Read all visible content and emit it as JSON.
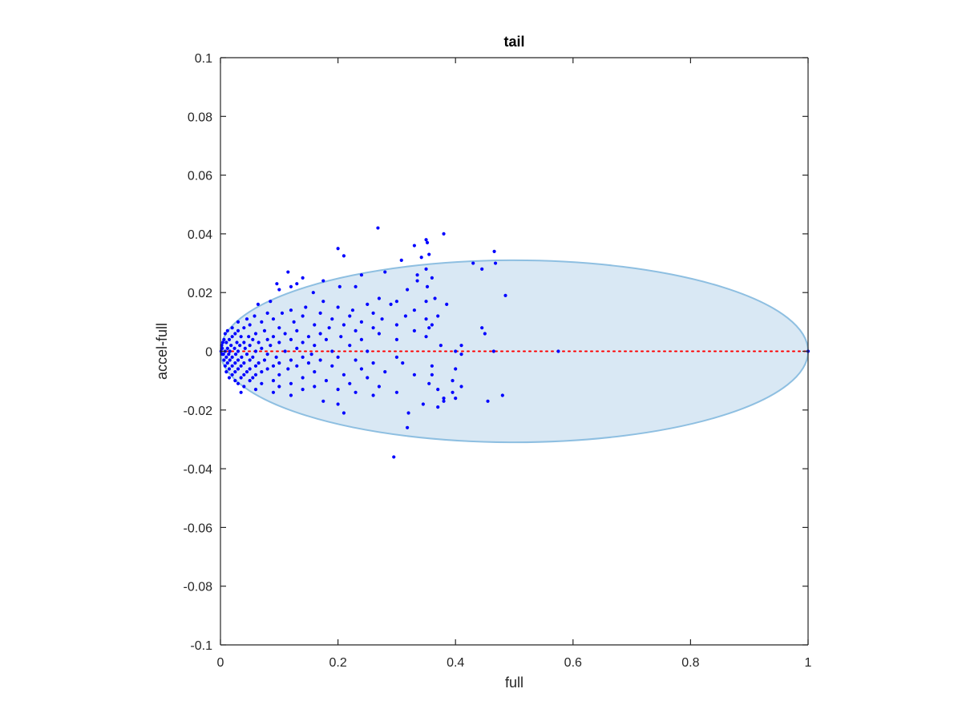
{
  "chart_data": {
    "type": "scatter",
    "title": "tail",
    "xlabel": "full",
    "ylabel": "accel-full",
    "xlim": [
      0,
      1
    ],
    "ylim": [
      -0.1,
      0.1
    ],
    "xticks": [
      0,
      0.2,
      0.4,
      0.6,
      0.8,
      1
    ],
    "xtick_labels": [
      "0",
      "0.2",
      "0.4",
      "0.6",
      "0.8",
      "1"
    ],
    "yticks": [
      0.1,
      0.08,
      0.06,
      0.04,
      0.02,
      0,
      -0.02,
      -0.04,
      -0.06,
      -0.08,
      -0.1
    ],
    "ytick_labels": [
      "0.1",
      "0.08",
      "0.06",
      "0.04",
      "0.02",
      "0",
      "-0.02",
      "-0.04",
      "-0.06",
      "-0.08",
      "-0.1"
    ],
    "grid": false,
    "colors": {
      "points": "#0000ff",
      "reference_line": "#ff0000",
      "ellipse_fill": "#d9e8f4",
      "ellipse_edge": "#8ebfe1",
      "axes": "#262626"
    },
    "reference_line": {
      "y": 0,
      "x": [
        0,
        1
      ],
      "style": "dotted"
    },
    "ellipse": {
      "center": [
        0.5,
        0
      ],
      "semi_axis_x": 0.5,
      "semi_axis_y": 0.031
    },
    "points": [
      [
        0.268,
        0.042
      ],
      [
        0.38,
        0.04
      ],
      [
        0.35,
        0.038
      ],
      [
        0.352,
        0.037
      ],
      [
        0.33,
        0.036
      ],
      [
        0.2,
        0.035
      ],
      [
        0.466,
        0.034
      ],
      [
        0.21,
        0.0325
      ],
      [
        0.355,
        0.033
      ],
      [
        0.342,
        0.032
      ],
      [
        0.308,
        0.031
      ],
      [
        0.43,
        0.03
      ],
      [
        0.468,
        0.03
      ],
      [
        0.445,
        0.028
      ],
      [
        0.115,
        0.027
      ],
      [
        0.28,
        0.027
      ],
      [
        0.335,
        0.026
      ],
      [
        0.24,
        0.026
      ],
      [
        0.14,
        0.025
      ],
      [
        0.36,
        0.025
      ],
      [
        0.35,
        0.028
      ],
      [
        0.096,
        0.023
      ],
      [
        0.13,
        0.023
      ],
      [
        0.335,
        0.024
      ],
      [
        0.175,
        0.024
      ],
      [
        0.12,
        0.022
      ],
      [
        0.203,
        0.022
      ],
      [
        0.23,
        0.022
      ],
      [
        0.352,
        0.022
      ],
      [
        0.1,
        0.021
      ],
      [
        0.158,
        0.02
      ],
      [
        0.318,
        0.021
      ],
      [
        0.485,
        0.019
      ],
      [
        0.365,
        0.018
      ],
      [
        0.27,
        0.018
      ],
      [
        0.085,
        0.017
      ],
      [
        0.175,
        0.017
      ],
      [
        0.3,
        0.017
      ],
      [
        0.35,
        0.017
      ],
      [
        0.25,
        0.016
      ],
      [
        0.385,
        0.016
      ],
      [
        0.064,
        0.016
      ],
      [
        0.145,
        0.015
      ],
      [
        0.2,
        0.015
      ],
      [
        0.29,
        0.016
      ],
      [
        0.225,
        0.014
      ],
      [
        0.12,
        0.014
      ],
      [
        0.33,
        0.014
      ],
      [
        0.08,
        0.013
      ],
      [
        0.105,
        0.013
      ],
      [
        0.17,
        0.013
      ],
      [
        0.26,
        0.013
      ],
      [
        0.37,
        0.012
      ],
      [
        0.058,
        0.012
      ],
      [
        0.14,
        0.012
      ],
      [
        0.22,
        0.012
      ],
      [
        0.315,
        0.012
      ],
      [
        0.09,
        0.011
      ],
      [
        0.19,
        0.011
      ],
      [
        0.275,
        0.011
      ],
      [
        0.35,
        0.011
      ],
      [
        0.045,
        0.011
      ],
      [
        0.125,
        0.01
      ],
      [
        0.24,
        0.01
      ],
      [
        0.03,
        0.01
      ],
      [
        0.07,
        0.01
      ],
      [
        0.16,
        0.009
      ],
      [
        0.21,
        0.009
      ],
      [
        0.3,
        0.009
      ],
      [
        0.36,
        0.009
      ],
      [
        0.05,
        0.009
      ],
      [
        0.1,
        0.008
      ],
      [
        0.185,
        0.008
      ],
      [
        0.26,
        0.008
      ],
      [
        0.445,
        0.008
      ],
      [
        0.355,
        0.008
      ],
      [
        0.02,
        0.008
      ],
      [
        0.04,
        0.008
      ],
      [
        0.075,
        0.007
      ],
      [
        0.13,
        0.007
      ],
      [
        0.23,
        0.007
      ],
      [
        0.33,
        0.007
      ],
      [
        0.012,
        0.007
      ],
      [
        0.03,
        0.007
      ],
      [
        0.06,
        0.006
      ],
      [
        0.11,
        0.006
      ],
      [
        0.17,
        0.006
      ],
      [
        0.27,
        0.006
      ],
      [
        0.45,
        0.006
      ],
      [
        0.35,
        0.005
      ],
      [
        0.008,
        0.006
      ],
      [
        0.025,
        0.006
      ],
      [
        0.048,
        0.005
      ],
      [
        0.09,
        0.005
      ],
      [
        0.15,
        0.005
      ],
      [
        0.205,
        0.005
      ],
      [
        0.02,
        0.005
      ],
      [
        0.035,
        0.005
      ],
      [
        0.006,
        0.004
      ],
      [
        0.015,
        0.004
      ],
      [
        0.055,
        0.004
      ],
      [
        0.08,
        0.004
      ],
      [
        0.12,
        0.004
      ],
      [
        0.18,
        0.004
      ],
      [
        0.24,
        0.004
      ],
      [
        0.3,
        0.004
      ],
      [
        0.01,
        0.003
      ],
      [
        0.028,
        0.003
      ],
      [
        0.04,
        0.003
      ],
      [
        0.065,
        0.003
      ],
      [
        0.1,
        0.003
      ],
      [
        0.14,
        0.003
      ],
      [
        0.375,
        0.002
      ],
      [
        0.004,
        0.003
      ],
      [
        0.018,
        0.002
      ],
      [
        0.033,
        0.002
      ],
      [
        0.05,
        0.002
      ],
      [
        0.085,
        0.002
      ],
      [
        0.16,
        0.002
      ],
      [
        0.22,
        0.002
      ],
      [
        0.41,
        0.002
      ],
      [
        0.002,
        0.002
      ],
      [
        0.012,
        0.001
      ],
      [
        0.024,
        0.001
      ],
      [
        0.042,
        0.001
      ],
      [
        0.07,
        0.001
      ],
      [
        0.13,
        0.001
      ],
      [
        0.003,
        0.001
      ],
      [
        0.008,
        0.0
      ],
      [
        0.016,
        0.0
      ],
      [
        0.03,
        0.0
      ],
      [
        0.06,
        0.0
      ],
      [
        0.11,
        0.0
      ],
      [
        0.19,
        0.0
      ],
      [
        0.25,
        0.0
      ],
      [
        0.4,
        0.0
      ],
      [
        0.465,
        0.0
      ],
      [
        0.575,
        0.0
      ],
      [
        1.0,
        0.0
      ],
      [
        0.001,
        0.0
      ],
      [
        0.005,
        -0.001
      ],
      [
        0.014,
        -0.001
      ],
      [
        0.026,
        -0.001
      ],
      [
        0.045,
        -0.001
      ],
      [
        0.08,
        -0.001
      ],
      [
        0.155,
        -0.001
      ],
      [
        0.41,
        -0.001
      ],
      [
        0.003,
        -0.001
      ],
      [
        0.01,
        -0.002
      ],
      [
        0.02,
        -0.002
      ],
      [
        0.036,
        -0.002
      ],
      [
        0.055,
        -0.002
      ],
      [
        0.095,
        -0.002
      ],
      [
        0.14,
        -0.002
      ],
      [
        0.2,
        -0.002
      ],
      [
        0.3,
        -0.002
      ],
      [
        0.006,
        -0.003
      ],
      [
        0.016,
        -0.003
      ],
      [
        0.03,
        -0.003
      ],
      [
        0.05,
        -0.003
      ],
      [
        0.075,
        -0.003
      ],
      [
        0.12,
        -0.003
      ],
      [
        0.17,
        -0.003
      ],
      [
        0.23,
        -0.003
      ],
      [
        0.012,
        -0.004
      ],
      [
        0.025,
        -0.004
      ],
      [
        0.04,
        -0.004
      ],
      [
        0.065,
        -0.004
      ],
      [
        0.1,
        -0.004
      ],
      [
        0.15,
        -0.004
      ],
      [
        0.26,
        -0.004
      ],
      [
        0.31,
        -0.004
      ],
      [
        0.008,
        -0.005
      ],
      [
        0.02,
        -0.005
      ],
      [
        0.035,
        -0.005
      ],
      [
        0.06,
        -0.005
      ],
      [
        0.09,
        -0.005
      ],
      [
        0.13,
        -0.005
      ],
      [
        0.19,
        -0.005
      ],
      [
        0.36,
        -0.005
      ],
      [
        0.015,
        -0.006
      ],
      [
        0.03,
        -0.006
      ],
      [
        0.05,
        -0.006
      ],
      [
        0.08,
        -0.006
      ],
      [
        0.115,
        -0.006
      ],
      [
        0.24,
        -0.006
      ],
      [
        0.4,
        -0.006
      ],
      [
        0.01,
        -0.007
      ],
      [
        0.025,
        -0.007
      ],
      [
        0.045,
        -0.007
      ],
      [
        0.07,
        -0.007
      ],
      [
        0.16,
        -0.007
      ],
      [
        0.28,
        -0.007
      ],
      [
        0.02,
        -0.008
      ],
      [
        0.04,
        -0.008
      ],
      [
        0.06,
        -0.008
      ],
      [
        0.1,
        -0.008
      ],
      [
        0.21,
        -0.008
      ],
      [
        0.33,
        -0.008
      ],
      [
        0.36,
        -0.008
      ],
      [
        0.015,
        -0.009
      ],
      [
        0.035,
        -0.009
      ],
      [
        0.055,
        -0.009
      ],
      [
        0.14,
        -0.009
      ],
      [
        0.25,
        -0.009
      ],
      [
        0.025,
        -0.01
      ],
      [
        0.05,
        -0.01
      ],
      [
        0.09,
        -0.01
      ],
      [
        0.18,
        -0.01
      ],
      [
        0.395,
        -0.01
      ],
      [
        0.03,
        -0.011
      ],
      [
        0.07,
        -0.011
      ],
      [
        0.12,
        -0.011
      ],
      [
        0.22,
        -0.011
      ],
      [
        0.355,
        -0.011
      ],
      [
        0.04,
        -0.012
      ],
      [
        0.1,
        -0.012
      ],
      [
        0.16,
        -0.012
      ],
      [
        0.27,
        -0.012
      ],
      [
        0.41,
        -0.012
      ],
      [
        0.06,
        -0.013
      ],
      [
        0.14,
        -0.013
      ],
      [
        0.2,
        -0.013
      ],
      [
        0.37,
        -0.013
      ],
      [
        0.035,
        -0.014
      ],
      [
        0.09,
        -0.014
      ],
      [
        0.23,
        -0.014
      ],
      [
        0.3,
        -0.014
      ],
      [
        0.395,
        -0.014
      ],
      [
        0.12,
        -0.015
      ],
      [
        0.26,
        -0.015
      ],
      [
        0.48,
        -0.015
      ],
      [
        0.38,
        -0.016
      ],
      [
        0.4,
        -0.016
      ],
      [
        0.175,
        -0.017
      ],
      [
        0.455,
        -0.017
      ],
      [
        0.2,
        -0.018
      ],
      [
        0.345,
        -0.018
      ],
      [
        0.37,
        -0.019
      ],
      [
        0.38,
        -0.017
      ],
      [
        0.21,
        -0.021
      ],
      [
        0.32,
        -0.021
      ],
      [
        0.318,
        -0.026
      ],
      [
        0.295,
        -0.036
      ]
    ]
  }
}
